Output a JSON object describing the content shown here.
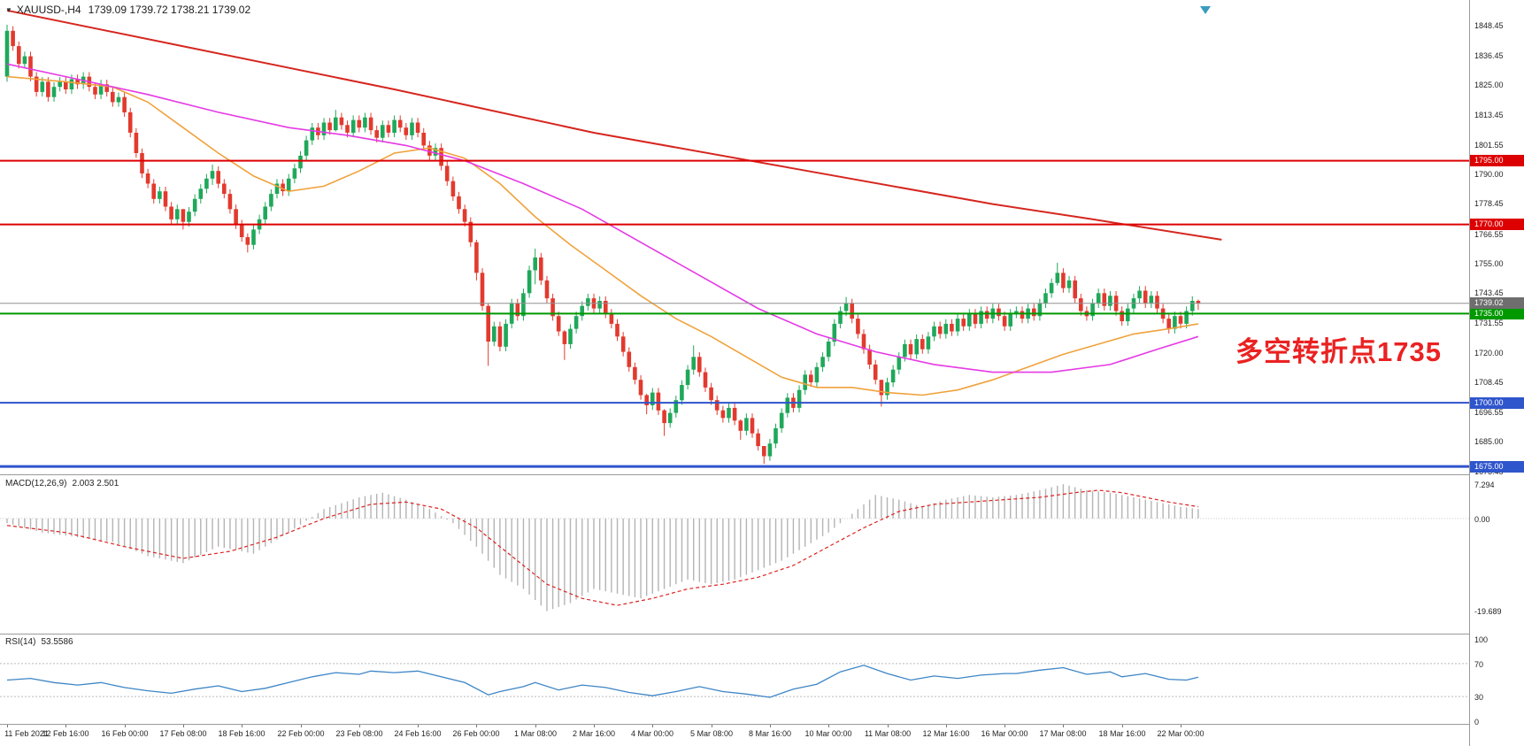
{
  "header": {
    "symbol": "XAUUSD-,H4",
    "ohlc": "1739.09 1739.72 1738.21 1739.02"
  },
  "annotation": {
    "text": "多空转折点1735"
  },
  "indicators": {
    "macd_label": "MACD(12,26,9)",
    "macd_values": "2.003 2.501",
    "rsi_label": "RSI(14)",
    "rsi_value": "53.5586"
  },
  "colors": {
    "up": "#1fa85a",
    "down": "#e23a2e",
    "ma_fast": "#f0a23c",
    "ma_mid": "#e53ae5",
    "ma_slow": "#d6261f",
    "hline_red": "#dd0000",
    "hline_green": "#009900",
    "hline_blue": "#2f55cc",
    "bid": "#909090",
    "bid_badge": "#6e6e6e",
    "macd_hist": "#b4b4b4",
    "macd_signal": "#dd2222",
    "rsi": "#3d85c6",
    "annotation": "#ea2222",
    "shift_marker": "#3a9bbf"
  },
  "chart_data": {
    "type": "candlestick",
    "symbol": "XAUUSD-",
    "timeframe": "H4",
    "current_price": 1739.02,
    "price_panel": {
      "ylim": [
        1671.9,
        1858.1
      ],
      "axis_labels": [
        "1848.45",
        "1836.45",
        "1825.00",
        "1813.45",
        "1801.55",
        "1790.00",
        "1778.45",
        "1766.55",
        "1755.00",
        "1743.45",
        "1731.55",
        "1720.00",
        "1708.45",
        "1696.55",
        "1685.00",
        "1673.45"
      ],
      "hlines": [
        {
          "price": 1795.0,
          "label": "1795.00",
          "color_key": "hline_red",
          "width": 2
        },
        {
          "price": 1770.0,
          "label": "1770.00",
          "color_key": "hline_red",
          "width": 2
        },
        {
          "price": 1735.0,
          "label": "1735.00",
          "color_key": "hline_green",
          "width": 2
        },
        {
          "price": 1700.0,
          "label": "1700.00",
          "color_key": "hline_blue",
          "width": 2
        },
        {
          "price": 1675.0,
          "label": "1675.00",
          "color_key": "hline_blue",
          "width": 3
        }
      ],
      "bid": {
        "price": 1739.02,
        "label": "1739.02"
      },
      "first_open": 1828,
      "wick_margin": 1.8,
      "closes": [
        1846,
        1840,
        1833,
        1836,
        1828,
        1822,
        1826,
        1820,
        1824,
        1826,
        1823,
        1827,
        1825,
        1828,
        1824,
        1821,
        1825,
        1822,
        1818,
        1820,
        1814,
        1806,
        1798,
        1790,
        1786,
        1780,
        1783,
        1777,
        1772,
        1776,
        1771,
        1775,
        1780,
        1784,
        1788,
        1791,
        1786,
        1782,
        1776,
        1770,
        1765,
        1762,
        1768,
        1772,
        1777,
        1782,
        1786,
        1783,
        1788,
        1792,
        1797,
        1803,
        1808,
        1805,
        1810,
        1807,
        1812,
        1809,
        1806,
        1811,
        1808,
        1812,
        1807,
        1804,
        1809,
        1806,
        1811,
        1808,
        1805,
        1810,
        1806,
        1801,
        1797,
        1800,
        1793,
        1787,
        1781,
        1776,
        1771,
        1763,
        1751,
        1738,
        1724,
        1730,
        1722,
        1731,
        1739,
        1734,
        1743,
        1752,
        1757,
        1748,
        1741,
        1734,
        1728,
        1723,
        1729,
        1734,
        1738,
        1741,
        1737,
        1740,
        1735,
        1731,
        1726,
        1720,
        1714,
        1709,
        1703,
        1699,
        1704,
        1697,
        1692,
        1696,
        1701,
        1707,
        1713,
        1718,
        1712,
        1706,
        1701,
        1697,
        1694,
        1698,
        1693,
        1689,
        1694,
        1688,
        1683,
        1679,
        1684,
        1690,
        1696,
        1702,
        1698,
        1705,
        1711,
        1708,
        1714,
        1718,
        1724,
        1731,
        1736,
        1739,
        1733,
        1727,
        1721,
        1715,
        1709,
        1703,
        1708,
        1713,
        1718,
        1723,
        1719,
        1725,
        1721,
        1726,
        1730,
        1727,
        1731,
        1728,
        1733,
        1730,
        1735,
        1731,
        1736,
        1733,
        1737,
        1734,
        1730,
        1735,
        1736,
        1733,
        1737,
        1734,
        1739,
        1743,
        1747,
        1751,
        1745,
        1748,
        1741,
        1736,
        1734,
        1739,
        1743,
        1738,
        1742,
        1736,
        1732,
        1737,
        1741,
        1744,
        1739,
        1742,
        1737,
        1733,
        1729,
        1734,
        1731,
        1736,
        1740,
        1739.0
      ],
      "wick_extremes": {
        "0": [
          1848.4,
          1826
        ],
        "30": [
          1776,
          1768
        ],
        "35": [
          1793.5,
          1785.5
        ],
        "41": [
          1766.5,
          1759
        ],
        "56": [
          1815,
          1806.5
        ],
        "80": [
          1764,
          1748
        ],
        "82": [
          1739,
          1714.5
        ],
        "90": [
          1760.5,
          1746.5
        ],
        "95": [
          1728.5,
          1716.8
        ],
        "109": [
          1703.5,
          1695.5
        ],
        "112": [
          1697.5,
          1687
        ],
        "117": [
          1722.5,
          1711
        ],
        "125": [
          1693.5,
          1685.5
        ],
        "129": [
          1683,
          1676
        ],
        "143": [
          1741.5,
          1734
        ],
        "149": [
          1708.5,
          1698.5
        ],
        "179": [
          1755,
          1746
        ],
        "203": [
          1740.5,
          1736.5
        ]
      },
      "moving_averages": [
        {
          "name": "ma-fast-orange",
          "color_key": "ma_fast",
          "width": 1.6,
          "points": [
            [
              0,
              1828
            ],
            [
              10,
              1826
            ],
            [
              18,
              1824
            ],
            [
              24,
              1818
            ],
            [
              30,
              1808
            ],
            [
              36,
              1798
            ],
            [
              42,
              1789
            ],
            [
              48,
              1783
            ],
            [
              54,
              1785
            ],
            [
              60,
              1791
            ],
            [
              66,
              1798
            ],
            [
              72,
              1800
            ],
            [
              78,
              1796
            ],
            [
              84,
              1786
            ],
            [
              90,
              1773
            ],
            [
              96,
              1762
            ],
            [
              102,
              1752
            ],
            [
              108,
              1742
            ],
            [
              114,
              1733
            ],
            [
              120,
              1726
            ],
            [
              126,
              1718
            ],
            [
              132,
              1710
            ],
            [
              138,
              1706
            ],
            [
              144,
              1706
            ],
            [
              150,
              1704
            ],
            [
              156,
              1703
            ],
            [
              162,
              1705
            ],
            [
              168,
              1709
            ],
            [
              174,
              1714
            ],
            [
              180,
              1719
            ],
            [
              186,
              1723
            ],
            [
              192,
              1727
            ],
            [
              198,
              1729
            ],
            [
              203,
              1731
            ]
          ]
        },
        {
          "name": "ma-mid-magenta",
          "color_key": "ma_mid",
          "width": 1.6,
          "points": [
            [
              0,
              1833
            ],
            [
              12,
              1827
            ],
            [
              24,
              1821
            ],
            [
              36,
              1814
            ],
            [
              48,
              1808
            ],
            [
              58,
              1805
            ],
            [
              68,
              1801
            ],
            [
              78,
              1795
            ],
            [
              88,
              1786
            ],
            [
              98,
              1776
            ],
            [
              108,
              1763
            ],
            [
              118,
              1750
            ],
            [
              128,
              1737
            ],
            [
              138,
              1727
            ],
            [
              148,
              1720
            ],
            [
              158,
              1715
            ],
            [
              168,
              1712
            ],
            [
              178,
              1712
            ],
            [
              188,
              1715
            ],
            [
              196,
              1721
            ],
            [
              203,
              1726
            ]
          ]
        },
        {
          "name": "ma-slow-red",
          "color_key": "ma_slow",
          "width": 2,
          "points": [
            [
              0,
              1854
            ],
            [
              32,
              1839
            ],
            [
              66,
              1823
            ],
            [
              100,
              1806
            ],
            [
              134,
              1792
            ],
            [
              168,
              1778
            ],
            [
              185,
              1772
            ],
            [
              207,
              1764
            ]
          ]
        }
      ]
    },
    "macd_panel": {
      "ylim": [
        -24.5,
        9.2
      ],
      "axis_labels": [
        {
          "v": 7.294,
          "t": "7.294"
        },
        {
          "v": 0,
          "t": "0.00"
        },
        {
          "v": -19.689,
          "t": "-19.689"
        }
      ],
      "main_points": [
        [
          0,
          -1
        ],
        [
          6,
          -3
        ],
        [
          12,
          -4
        ],
        [
          18,
          -5
        ],
        [
          24,
          -8
        ],
        [
          30,
          -9.5
        ],
        [
          36,
          -6
        ],
        [
          42,
          -7.5
        ],
        [
          48,
          -3
        ],
        [
          54,
          2
        ],
        [
          60,
          4.5
        ],
        [
          64,
          5.5
        ],
        [
          68,
          4
        ],
        [
          72,
          2
        ],
        [
          76,
          -1
        ],
        [
          80,
          -6
        ],
        [
          84,
          -12
        ],
        [
          88,
          -15
        ],
        [
          92,
          -19.7
        ],
        [
          96,
          -18
        ],
        [
          100,
          -15
        ],
        [
          104,
          -16
        ],
        [
          108,
          -17
        ],
        [
          112,
          -15
        ],
        [
          116,
          -13
        ],
        [
          120,
          -14
        ],
        [
          124,
          -13
        ],
        [
          128,
          -11
        ],
        [
          132,
          -9
        ],
        [
          136,
          -6
        ],
        [
          140,
          -3
        ],
        [
          144,
          1
        ],
        [
          148,
          5
        ],
        [
          152,
          4
        ],
        [
          156,
          2.5
        ],
        [
          160,
          4
        ],
        [
          164,
          5
        ],
        [
          168,
          4.5
        ],
        [
          172,
          5
        ],
        [
          176,
          6
        ],
        [
          180,
          7.3
        ],
        [
          184,
          6
        ],
        [
          188,
          5.5
        ],
        [
          192,
          4.5
        ],
        [
          196,
          3.5
        ],
        [
          200,
          2.5
        ],
        [
          203,
          2.0
        ]
      ],
      "signal_points": [
        [
          0,
          -1.5
        ],
        [
          10,
          -3
        ],
        [
          20,
          -6
        ],
        [
          30,
          -8.5
        ],
        [
          38,
          -7
        ],
        [
          46,
          -4
        ],
        [
          54,
          0
        ],
        [
          62,
          3
        ],
        [
          68,
          3.5
        ],
        [
          74,
          2
        ],
        [
          80,
          -2
        ],
        [
          86,
          -8
        ],
        [
          92,
          -14
        ],
        [
          98,
          -17
        ],
        [
          104,
          -18.5
        ],
        [
          110,
          -17
        ],
        [
          116,
          -15
        ],
        [
          122,
          -14
        ],
        [
          128,
          -12.5
        ],
        [
          134,
          -10
        ],
        [
          140,
          -6
        ],
        [
          146,
          -2
        ],
        [
          152,
          1.5
        ],
        [
          158,
          3
        ],
        [
          164,
          3.5
        ],
        [
          170,
          4
        ],
        [
          176,
          4.5
        ],
        [
          182,
          5.5
        ],
        [
          186,
          6
        ],
        [
          190,
          5.5
        ],
        [
          194,
          4.5
        ],
        [
          198,
          3.5
        ],
        [
          203,
          2.5
        ]
      ]
    },
    "rsi_panel": {
      "range": [
        0,
        100
      ],
      "levels": [
        {
          "v": 100,
          "t": "100"
        },
        {
          "v": 70,
          "t": "70"
        },
        {
          "v": 30,
          "t": "30"
        },
        {
          "v": 0,
          "t": "0"
        }
      ],
      "points": [
        [
          0,
          50
        ],
        [
          4,
          52
        ],
        [
          8,
          47
        ],
        [
          12,
          44
        ],
        [
          16,
          47
        ],
        [
          20,
          41
        ],
        [
          24,
          37
        ],
        [
          28,
          34
        ],
        [
          32,
          39
        ],
        [
          36,
          43
        ],
        [
          40,
          36
        ],
        [
          44,
          40
        ],
        [
          48,
          47
        ],
        [
          52,
          54
        ],
        [
          56,
          59
        ],
        [
          60,
          57
        ],
        [
          62,
          61
        ],
        [
          66,
          59
        ],
        [
          70,
          61
        ],
        [
          74,
          54
        ],
        [
          78,
          47
        ],
        [
          82,
          32
        ],
        [
          84,
          36
        ],
        [
          88,
          42
        ],
        [
          90,
          47
        ],
        [
          94,
          38
        ],
        [
          98,
          44
        ],
        [
          102,
          41
        ],
        [
          106,
          35
        ],
        [
          110,
          31
        ],
        [
          114,
          36
        ],
        [
          118,
          42
        ],
        [
          122,
          36
        ],
        [
          126,
          33
        ],
        [
          130,
          29
        ],
        [
          134,
          39
        ],
        [
          138,
          45
        ],
        [
          142,
          60
        ],
        [
          146,
          68
        ],
        [
          150,
          58
        ],
        [
          154,
          50
        ],
        [
          158,
          55
        ],
        [
          162,
          52
        ],
        [
          166,
          56
        ],
        [
          170,
          58
        ],
        [
          172,
          58
        ],
        [
          176,
          62
        ],
        [
          180,
          65
        ],
        [
          184,
          57
        ],
        [
          188,
          60
        ],
        [
          190,
          54
        ],
        [
          194,
          58
        ],
        [
          198,
          51
        ],
        [
          201,
          50
        ],
        [
          203,
          53.6
        ]
      ]
    },
    "time_axis": [
      {
        "i": 0,
        "t": "11 Feb 2021"
      },
      {
        "i": 10,
        "t": "12 Feb 16:00"
      },
      {
        "i": 20,
        "t": "16 Feb 00:00"
      },
      {
        "i": 30,
        "t": "17 Feb 08:00"
      },
      {
        "i": 40,
        "t": "18 Feb 16:00"
      },
      {
        "i": 50,
        "t": "22 Feb 00:00"
      },
      {
        "i": 60,
        "t": "23 Feb 08:00"
      },
      {
        "i": 70,
        "t": "24 Feb 16:00"
      },
      {
        "i": 80,
        "t": "26 Feb 00:00"
      },
      {
        "i": 90,
        "t": "1 Mar 08:00"
      },
      {
        "i": 100,
        "t": "2 Mar 16:00"
      },
      {
        "i": 110,
        "t": "4 Mar 00:00"
      },
      {
        "i": 120,
        "t": "5 Mar 08:00"
      },
      {
        "i": 130,
        "t": "8 Mar 16:00"
      },
      {
        "i": 140,
        "t": "10 Mar 00:00"
      },
      {
        "i": 150,
        "t": "11 Mar 08:00"
      },
      {
        "i": 160,
        "t": "12 Mar 16:00"
      },
      {
        "i": 170,
        "t": "16 Mar 00:00"
      },
      {
        "i": 180,
        "t": "17 Mar 08:00"
      },
      {
        "i": 190,
        "t": "18 Mar 16:00"
      },
      {
        "i": 200,
        "t": "22 Mar 00:00"
      }
    ]
  }
}
